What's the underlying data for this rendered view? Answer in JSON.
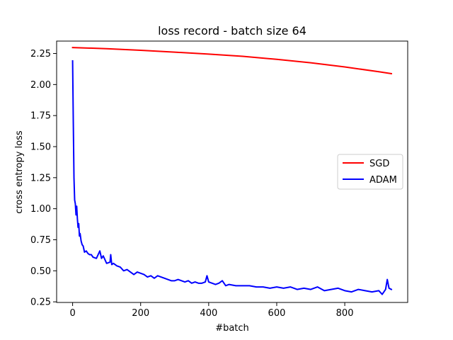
{
  "chart_data": {
    "type": "line",
    "title": "loss record - batch size 64",
    "xlabel": "#batch",
    "ylabel": "cross entropy loss",
    "xlim": [
      -47,
      985
    ],
    "ylim": [
      0.245,
      2.35
    ],
    "xticks": [
      0,
      200,
      400,
      600,
      800
    ],
    "yticks": [
      0.25,
      0.5,
      0.75,
      1.0,
      1.25,
      1.5,
      1.75,
      2.0,
      2.25
    ],
    "ytick_labels": [
      "0.25",
      "0.50",
      "0.75",
      "1.00",
      "1.25",
      "1.50",
      "1.75",
      "2.00",
      "2.25"
    ],
    "grid": false,
    "legend_position": "center-right",
    "series": [
      {
        "name": "SGD",
        "color": "#ff0000",
        "x": [
          0,
          100,
          200,
          300,
          400,
          500,
          600,
          700,
          800,
          900,
          937
        ],
        "y": [
          2.298,
          2.289,
          2.276,
          2.261,
          2.245,
          2.227,
          2.203,
          2.175,
          2.142,
          2.103,
          2.088
        ]
      },
      {
        "name": "ADAM",
        "color": "#0000ff",
        "x": [
          0,
          2,
          4,
          6,
          8,
          10,
          12,
          14,
          16,
          18,
          20,
          22,
          25,
          28,
          31,
          35,
          40,
          45,
          50,
          55,
          60,
          70,
          80,
          85,
          90,
          100,
          110,
          112,
          115,
          120,
          130,
          140,
          150,
          160,
          170,
          180,
          190,
          200,
          210,
          220,
          230,
          240,
          250,
          260,
          270,
          280,
          290,
          300,
          310,
          320,
          330,
          340,
          350,
          360,
          370,
          380,
          390,
          395,
          400,
          410,
          420,
          430,
          440,
          450,
          460,
          480,
          500,
          520,
          540,
          560,
          580,
          600,
          620,
          640,
          660,
          680,
          700,
          720,
          740,
          760,
          780,
          800,
          820,
          840,
          860,
          880,
          900,
          910,
          920,
          925,
          930,
          937
        ],
        "y": [
          2.19,
          1.7,
          1.25,
          1.07,
          1.04,
          0.95,
          1.02,
          0.92,
          0.85,
          0.88,
          0.78,
          0.8,
          0.74,
          0.71,
          0.7,
          0.65,
          0.66,
          0.64,
          0.63,
          0.63,
          0.61,
          0.6,
          0.66,
          0.6,
          0.62,
          0.56,
          0.57,
          0.63,
          0.55,
          0.56,
          0.54,
          0.53,
          0.5,
          0.51,
          0.49,
          0.47,
          0.49,
          0.48,
          0.47,
          0.45,
          0.46,
          0.44,
          0.46,
          0.45,
          0.44,
          0.43,
          0.42,
          0.42,
          0.43,
          0.42,
          0.41,
          0.42,
          0.4,
          0.41,
          0.4,
          0.4,
          0.41,
          0.46,
          0.41,
          0.4,
          0.39,
          0.4,
          0.42,
          0.38,
          0.39,
          0.38,
          0.38,
          0.38,
          0.37,
          0.37,
          0.36,
          0.37,
          0.36,
          0.37,
          0.35,
          0.36,
          0.35,
          0.37,
          0.34,
          0.35,
          0.36,
          0.34,
          0.33,
          0.35,
          0.34,
          0.33,
          0.34,
          0.31,
          0.35,
          0.43,
          0.36,
          0.35
        ]
      }
    ]
  }
}
